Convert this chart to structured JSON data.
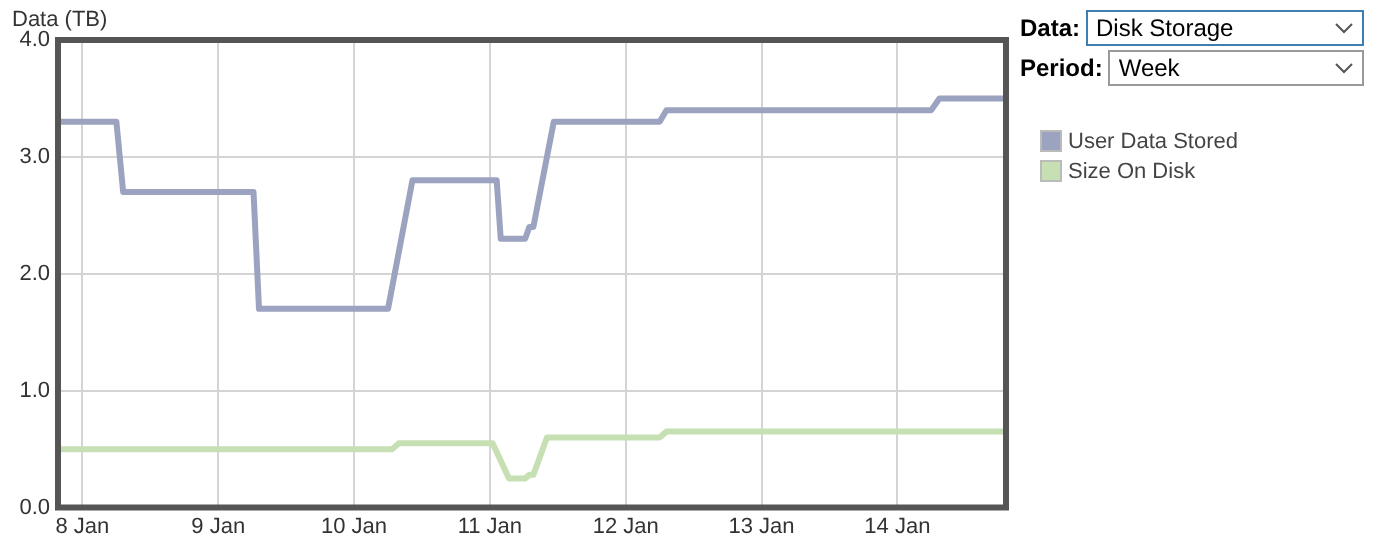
{
  "chart_data": {
    "type": "line",
    "ylabel": "Data (TB)",
    "xlim": [
      "--01-07T19:41",
      "--01-14T19:12"
    ],
    "xticks": [
      {
        "value": "--01-08",
        "label": "8 Jan"
      },
      {
        "value": "--01-09",
        "label": "9 Jan"
      },
      {
        "value": "--01-10",
        "label": "10 Jan"
      },
      {
        "value": "--01-11",
        "label": "11 Jan"
      },
      {
        "value": "--01-12",
        "label": "12 Jan"
      },
      {
        "value": "--01-13",
        "label": "13 Jan"
      },
      {
        "value": "--01-14",
        "label": "14 Jan"
      }
    ],
    "ylim": [
      0,
      4
    ],
    "yticks": [
      {
        "value": 0,
        "label": "0.0"
      },
      {
        "value": 1,
        "label": "1.0"
      },
      {
        "value": 2,
        "label": "2.0"
      },
      {
        "value": 3,
        "label": "3.0"
      },
      {
        "value": 4,
        "label": "4.0"
      }
    ],
    "grid": true,
    "legend": "right",
    "marker": "none",
    "line_style": "solid",
    "annotations": [
      "Data:",
      "Disk Storage",
      "Period:",
      "Week"
    ],
    "series": [
      {
        "name": "User Data Stored",
        "color": "#9ba3c0",
        "x": [
          "--01-07T19:41",
          "--01-08T06:00",
          "--01-08T07:12",
          "--01-09T06:14",
          "--01-09T07:12",
          "--01-10T06:00",
          "--01-10T10:19",
          "--01-11T01:12",
          "--01-11T01:55",
          "--01-11T06:14",
          "--01-11T06:58",
          "--01-11T07:41",
          "--01-11T11:17",
          "--01-12T06:00",
          "--01-12T07:12",
          "--01-14T06:00",
          "--01-14T07:26",
          "--01-14T19:12"
        ],
        "values": [
          3.3,
          3.3,
          2.7,
          2.7,
          1.7,
          1.7,
          2.8,
          2.8,
          2.3,
          2.3,
          2.4,
          2.4,
          3.3,
          3.3,
          3.4,
          3.4,
          3.5,
          3.5
        ]
      },
      {
        "name": "Size On Disk",
        "color": "#c6e0b4",
        "x": [
          "--01-07T19:41",
          "--01-10T06:43",
          "--01-10T07:55",
          "--01-11T00:29",
          "--01-11T03:22",
          "--01-11T06:14",
          "--01-11T06:58",
          "--01-11T07:41",
          "--01-11T10:05",
          "--01-12T06:00",
          "--01-12T07:12",
          "--01-14T19:12"
        ],
        "values": [
          0.5,
          0.5,
          0.55,
          0.55,
          0.25,
          0.25,
          0.28,
          0.28,
          0.6,
          0.6,
          0.65,
          0.65
        ]
      }
    ]
  }
}
